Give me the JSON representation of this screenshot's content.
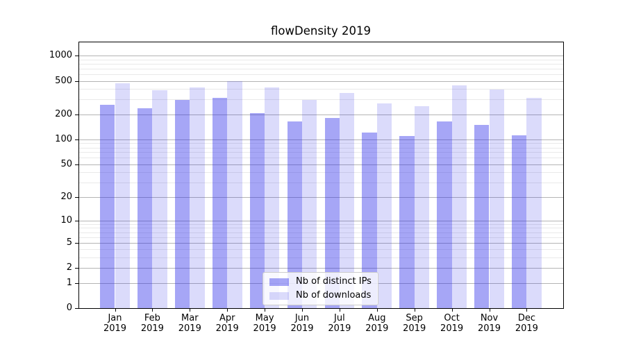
{
  "title": "flowDensity 2019",
  "chart_data": {
    "type": "bar",
    "title": "flowDensity 2019",
    "yscale": "log1p",
    "grid": "horizontal major+minor",
    "legend_position": "lower center",
    "categories": [
      "Jan",
      "Feb",
      "Mar",
      "Apr",
      "May",
      "Jun",
      "Jul",
      "Aug",
      "Sep",
      "Oct",
      "Nov",
      "Dec"
    ],
    "year": "2019",
    "x_tick_labels": [
      "Jan 2019",
      "Feb 2019",
      "Mar 2019",
      "Apr 2019",
      "May 2019",
      "Jun 2019",
      "Jul 2019",
      "Aug 2019",
      "Sep 2019",
      "Oct 2019",
      "Nov 2019",
      "Dec 2019"
    ],
    "series": [
      {
        "name": "Nb of distinct IPs",
        "color": "rgba(40,40,232,0.41)",
        "values": [
          260,
          235,
          298,
          312,
          207,
          164,
          179,
          120,
          110,
          164,
          150,
          112
        ]
      },
      {
        "name": "Nb of downloads",
        "color": "rgba(40,40,232,0.17)",
        "values": [
          465,
          390,
          421,
          500,
          418,
          295,
          362,
          268,
          252,
          440,
          392,
          317
        ]
      }
    ],
    "y_ticks": [
      0,
      1,
      2,
      5,
      10,
      20,
      50,
      100,
      200,
      500,
      1000
    ],
    "y_minor_ticks": [
      3,
      4,
      6,
      7,
      8,
      9,
      30,
      40,
      60,
      70,
      80,
      90,
      300,
      400,
      600,
      700,
      800,
      900
    ],
    "ylim": [
      0,
      1480
    ]
  },
  "colors": {
    "bar_distinct_ips": "rgba(40,40,232,0.41)",
    "bar_downloads": "rgba(40,40,232,0.17)",
    "grid_major": "#b4b4b4",
    "grid_minor": "#e9e9e9",
    "spine": "#000000",
    "legend_border": "#cccccc",
    "background": "#ffffff"
  }
}
